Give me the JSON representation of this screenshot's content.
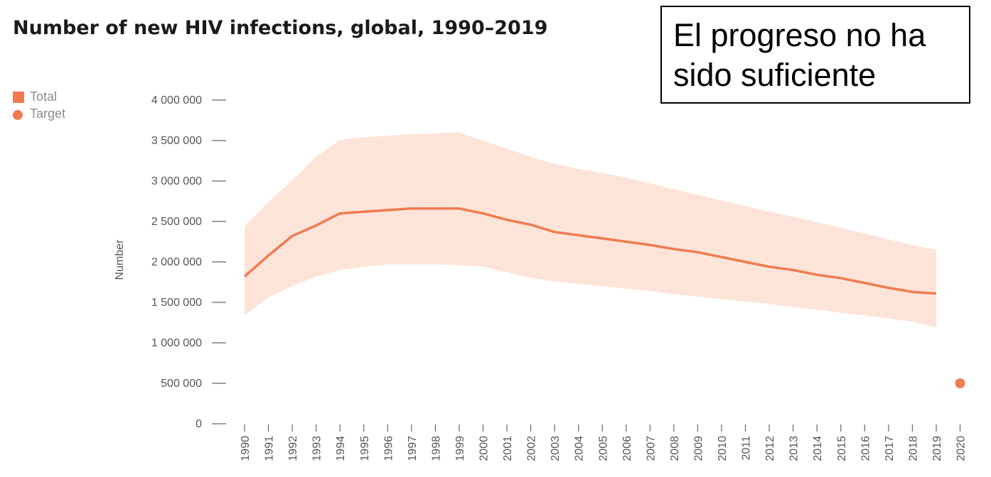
{
  "callout": {
    "text": "El progreso no ha sido suficiente"
  },
  "legend": [
    {
      "label": "Total",
      "shape": "square",
      "color": "#ee7c50"
    },
    {
      "label": "Target",
      "shape": "circle",
      "color": "#ee7c50"
    }
  ],
  "colors": {
    "line": "#ee7c50",
    "band": "#fde4d9",
    "tick": "#555555"
  },
  "chart_data": {
    "type": "line",
    "title": "Number of new HIV infections, global, 1990–2019",
    "ylabel": "Number",
    "xlabel": "",
    "ylim": [
      0,
      4000000
    ],
    "yticks": [
      0,
      500000,
      1000000,
      1500000,
      2000000,
      2500000,
      3000000,
      3500000,
      4000000
    ],
    "ytick_labels": [
      "0",
      "500 000",
      "1 000 000",
      "1 500 000",
      "2 000 000",
      "2 500 000",
      "3 000 000",
      "3 500 000",
      "4 000 000"
    ],
    "x": [
      1990,
      1991,
      1992,
      1993,
      1994,
      1995,
      1996,
      1997,
      1998,
      1999,
      2000,
      2001,
      2002,
      2003,
      2004,
      2005,
      2006,
      2007,
      2008,
      2009,
      2010,
      2011,
      2012,
      2013,
      2014,
      2015,
      2016,
      2017,
      2018,
      2019,
      2020
    ],
    "series": [
      {
        "name": "Total",
        "x": [
          1990,
          1991,
          1992,
          1993,
          1994,
          1995,
          1996,
          1997,
          1998,
          1999,
          2000,
          2001,
          2002,
          2003,
          2004,
          2005,
          2006,
          2007,
          2008,
          2009,
          2010,
          2011,
          2012,
          2013,
          2014,
          2015,
          2016,
          2017,
          2018,
          2019
        ],
        "values": [
          1820000,
          2080000,
          2320000,
          2450000,
          2600000,
          2620000,
          2640000,
          2660000,
          2660000,
          2660000,
          2600000,
          2520000,
          2460000,
          2370000,
          2330000,
          2290000,
          2250000,
          2210000,
          2160000,
          2120000,
          2060000,
          2000000,
          1940000,
          1900000,
          1840000,
          1800000,
          1740000,
          1680000,
          1630000,
          1610000
        ],
        "lower": [
          1340000,
          1560000,
          1700000,
          1820000,
          1900000,
          1940000,
          1970000,
          1970000,
          1970000,
          1960000,
          1940000,
          1870000,
          1800000,
          1760000,
          1730000,
          1700000,
          1670000,
          1640000,
          1600000,
          1570000,
          1540000,
          1510000,
          1480000,
          1440000,
          1410000,
          1370000,
          1340000,
          1300000,
          1260000,
          1190000
        ],
        "upper": [
          2440000,
          2740000,
          3010000,
          3300000,
          3510000,
          3540000,
          3560000,
          3580000,
          3590000,
          3600000,
          3500000,
          3400000,
          3300000,
          3210000,
          3150000,
          3100000,
          3040000,
          2970000,
          2900000,
          2830000,
          2760000,
          2690000,
          2620000,
          2560000,
          2490000,
          2420000,
          2350000,
          2280000,
          2210000,
          2150000
        ]
      },
      {
        "name": "Target",
        "x": [
          2020
        ],
        "values": [
          500000
        ]
      }
    ],
    "legend_position": "top-left",
    "grid": false
  }
}
